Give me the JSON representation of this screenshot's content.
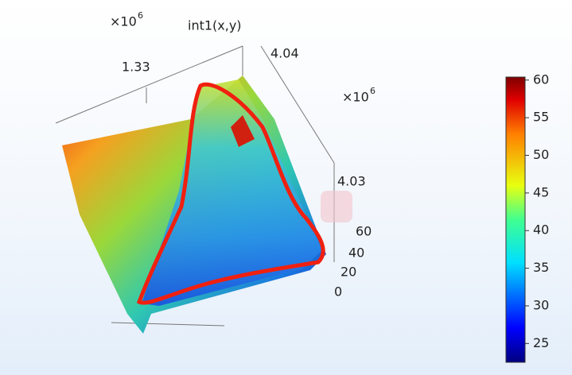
{
  "plot": {
    "title": "int1(x,y)",
    "x_axis": {
      "multiplier": {
        "base": "×10",
        "exponent": "6"
      },
      "tick": "1.33"
    },
    "y_axis": {
      "multiplier": {
        "base": "×10",
        "exponent": "6"
      },
      "ticks": [
        "4.04",
        "4.03"
      ]
    },
    "z_axis": {
      "ticks": [
        "60",
        "40",
        "20",
        "0"
      ]
    }
  },
  "colorbar": {
    "lim": [
      22.5,
      60.4
    ],
    "ticks": [
      25,
      30,
      35,
      40,
      45,
      50,
      55,
      60
    ]
  }
}
